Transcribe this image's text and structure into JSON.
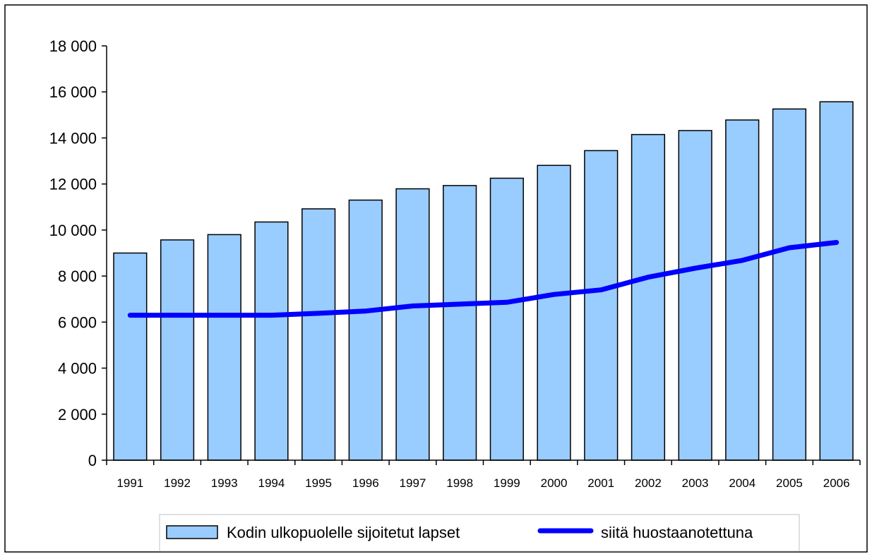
{
  "chart_data": {
    "type": "bar",
    "title": "",
    "xlabel": "",
    "ylabel": "",
    "categories": [
      "1991",
      "1992",
      "1993",
      "1994",
      "1995",
      "1996",
      "1997",
      "1998",
      "1999",
      "2000",
      "2001",
      "2002",
      "2003",
      "2004",
      "2005",
      "2006"
    ],
    "series": [
      {
        "name": "Kodin ulkopuolelle sijoitetut lapset",
        "type": "bar",
        "color": "#99ccff",
        "values": [
          9000,
          9570,
          9800,
          10350,
          10920,
          11300,
          11790,
          11930,
          12250,
          12810,
          13450,
          14150,
          14320,
          14780,
          15260,
          15570
        ]
      },
      {
        "name": "siitä huostaanotettuna",
        "type": "line",
        "color": "#0000ff",
        "values": [
          6300,
          6300,
          6300,
          6300,
          6380,
          6480,
          6700,
          6780,
          6860,
          7200,
          7400,
          7950,
          8340,
          8680,
          9230,
          9460
        ]
      }
    ],
    "ylim": [
      0,
      18000
    ],
    "yticks": [
      0,
      2000,
      4000,
      6000,
      8000,
      10000,
      12000,
      14000,
      16000,
      18000
    ],
    "ytick_labels": [
      "0",
      "2 000",
      "4 000",
      "6 000",
      "8 000",
      "10 000",
      "12 000",
      "14 000",
      "16 000",
      "18 000"
    ],
    "grid": false,
    "legend_position": "bottom"
  }
}
